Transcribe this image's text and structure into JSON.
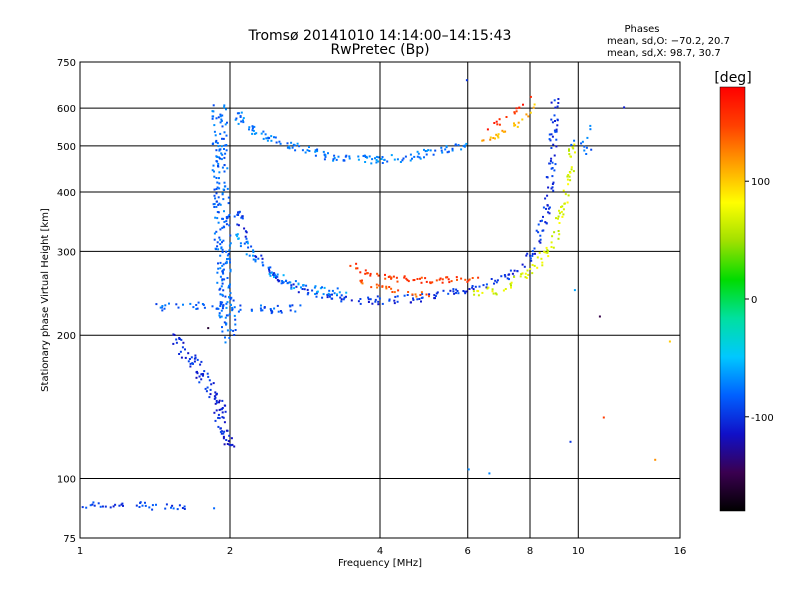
{
  "chart_data": {
    "type": "scatter",
    "title": "Tromsø 20141010 14:14:00–14:15:43",
    "subtitle": "RwPretec (Bp)",
    "xlabel": "Frequency [MHz]",
    "ylabel": "Stationary phase Virtual Height [km]",
    "x_scale": "log",
    "y_scale": "log",
    "xlim": [
      1,
      16
    ],
    "ylim": [
      75,
      750
    ],
    "x_ticks": [
      1,
      2,
      4,
      6,
      8,
      10,
      16
    ],
    "y_ticks": [
      75,
      100,
      200,
      300,
      400,
      500,
      600,
      750
    ],
    "grid": true,
    "stats": {
      "heading": "Phases",
      "line_o": "mean, sd,O: −70.2, 20.7",
      "line_x": "mean, sd,X:  98.7, 30.7"
    },
    "colorbar": {
      "label": "[deg]",
      "min": -180,
      "max": 180,
      "ticks": [
        100,
        0,
        -100
      ],
      "colormap": [
        "#000000",
        "#3a0050",
        "#1010c8",
        "#0060ff",
        "#00c8ff",
        "#00e0a0",
        "#00dc00",
        "#a0e000",
        "#ffff00",
        "#ffa000",
        "#ff4000",
        "#ff0000"
      ]
    },
    "traces": [
      {
        "phase": -95,
        "points": [
          [
            1.0,
            88
          ],
          [
            1.08,
            89
          ],
          [
            1.15,
            88
          ],
          [
            1.25,
            89
          ],
          [
            1.35,
            88
          ],
          [
            1.45,
            87
          ],
          [
            1.55,
            88
          ],
          [
            1.65,
            87
          ]
        ],
        "scatter": 3,
        "density": 10
      },
      {
        "phase": -85,
        "points": [
          [
            1.42,
            230
          ],
          [
            1.6,
            232
          ],
          [
            1.8,
            232
          ],
          [
            2.0,
            228
          ],
          [
            2.4,
            228
          ],
          [
            2.8,
            228
          ]
        ],
        "scatter": 4,
        "density": 12
      },
      {
        "phase": -105,
        "points": [
          [
            1.55,
            200
          ],
          [
            1.7,
            175
          ],
          [
            1.8,
            160
          ],
          [
            1.85,
            150
          ],
          [
            1.9,
            140
          ],
          [
            1.95,
            125
          ],
          [
            2.0,
            115
          ]
        ],
        "scatter": 6,
        "density": 25
      },
      {
        "phase": -80,
        "points": [
          [
            1.9,
            600
          ],
          [
            1.9,
            450
          ],
          [
            1.92,
            350
          ],
          [
            1.93,
            300
          ],
          [
            1.95,
            250
          ],
          [
            1.97,
            220
          ],
          [
            1.98,
            200
          ]
        ],
        "scatter": 8,
        "density": 30
      },
      {
        "phase": -75,
        "points": [
          [
            2.05,
            600
          ],
          [
            2.1,
            560
          ],
          [
            2.3,
            530
          ],
          [
            2.6,
            505
          ],
          [
            3.0,
            480
          ],
          [
            3.5,
            470
          ],
          [
            4.0,
            470
          ],
          [
            4.5,
            475
          ],
          [
            5.0,
            485
          ],
          [
            5.5,
            495
          ],
          [
            5.9,
            505
          ]
        ],
        "scatter": 4,
        "density": 18
      },
      {
        "phase": -100,
        "points": [
          [
            2.05,
            370
          ],
          [
            2.2,
            300
          ],
          [
            2.5,
            265
          ],
          [
            2.8,
            250
          ],
          [
            3.2,
            242
          ],
          [
            3.6,
            238
          ],
          [
            4.0,
            238
          ],
          [
            4.6,
            240
          ],
          [
            5.2,
            245
          ],
          [
            6.0,
            250
          ],
          [
            6.6,
            258
          ],
          [
            7.2,
            268
          ],
          [
            7.8,
            285
          ],
          [
            8.2,
            310
          ],
          [
            8.5,
            350
          ],
          [
            8.7,
            400
          ],
          [
            8.8,
            450
          ],
          [
            8.85,
            500
          ],
          [
            8.9,
            560
          ],
          [
            8.95,
            640
          ]
        ],
        "scatter": 4,
        "density": 14
      },
      {
        "phase": -70,
        "points": [
          [
            2.05,
            330
          ],
          [
            2.3,
            280
          ],
          [
            2.6,
            258
          ],
          [
            3.0,
            250
          ],
          [
            3.4,
            247
          ]
        ],
        "scatter": 4,
        "density": 14
      },
      {
        "phase": 150,
        "points": [
          [
            3.5,
            282
          ],
          [
            3.8,
            272
          ],
          [
            4.2,
            265
          ],
          [
            4.7,
            262
          ],
          [
            5.2,
            262
          ],
          [
            5.8,
            263
          ],
          [
            6.2,
            264
          ]
        ],
        "scatter": 3,
        "density": 14
      },
      {
        "phase": 140,
        "points": [
          [
            3.6,
            262
          ],
          [
            4.0,
            252
          ],
          [
            4.5,
            246
          ],
          [
            5.0,
            244
          ]
        ],
        "scatter": 3,
        "density": 10
      },
      {
        "phase": 70,
        "points": [
          [
            6.2,
            245
          ],
          [
            6.8,
            250
          ],
          [
            7.4,
            260
          ],
          [
            8.0,
            275
          ],
          [
            8.5,
            295
          ],
          [
            8.9,
            320
          ],
          [
            9.2,
            360
          ],
          [
            9.4,
            400
          ],
          [
            9.6,
            450
          ],
          [
            9.7,
            500
          ]
        ],
        "scatter": 4,
        "density": 14
      },
      {
        "phase": 110,
        "points": [
          [
            6.2,
            500
          ],
          [
            6.8,
            525
          ],
          [
            7.4,
            550
          ],
          [
            7.9,
            585
          ],
          [
            8.2,
            615
          ]
        ],
        "scatter": 3,
        "density": 10
      },
      {
        "phase": 160,
        "points": [
          [
            6.5,
            540
          ],
          [
            7.0,
            570
          ],
          [
            7.5,
            600
          ],
          [
            8.0,
            630
          ]
        ],
        "scatter": 3,
        "density": 8
      },
      {
        "phase": -80,
        "points": [
          [
            9.6,
            500
          ],
          [
            10.0,
            520
          ],
          [
            10.4,
            480
          ],
          [
            10.5,
            560
          ]
        ],
        "scatter": 3,
        "density": 6
      }
    ],
    "isolated_points": [
      {
        "x": 5.95,
        "y": 690,
        "phase": -100
      },
      {
        "x": 6.0,
        "y": 105,
        "phase": -70
      },
      {
        "x": 6.6,
        "y": 103,
        "phase": -70
      },
      {
        "x": 9.6,
        "y": 120,
        "phase": -100
      },
      {
        "x": 9.8,
        "y": 250,
        "phase": -60
      },
      {
        "x": 11.0,
        "y": 220,
        "phase": -150
      },
      {
        "x": 11.2,
        "y": 135,
        "phase": 150
      },
      {
        "x": 12.3,
        "y": 605,
        "phase": -110
      },
      {
        "x": 14.2,
        "y": 110,
        "phase": 120
      },
      {
        "x": 15.2,
        "y": 195,
        "phase": 100
      },
      {
        "x": 1.8,
        "y": 208,
        "phase": -160
      },
      {
        "x": 1.85,
        "y": 87,
        "phase": -80
      }
    ]
  }
}
